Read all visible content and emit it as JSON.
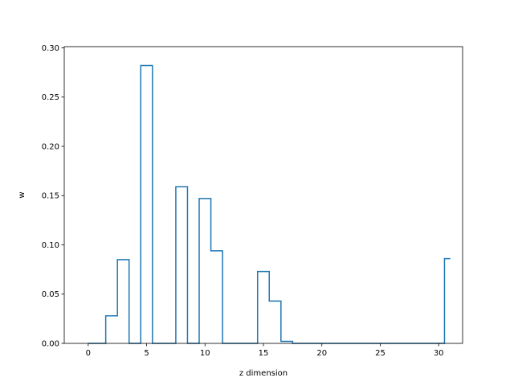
{
  "chart_data": {
    "type": "line",
    "drawstyle": "steps-mid",
    "xlabel": "z dimension",
    "ylabel": "w",
    "xlim": [
      -2.05,
      32.05
    ],
    "ylim": [
      0,
      0.3012
    ],
    "x_ticks": [
      0,
      5,
      10,
      15,
      20,
      25,
      30
    ],
    "x_tick_labels": [
      "0",
      "5",
      "10",
      "15",
      "20",
      "25",
      "30"
    ],
    "y_ticks": [
      0.0,
      0.05,
      0.1,
      0.15,
      0.2,
      0.25,
      0.3
    ],
    "y_tick_labels": [
      "0.00",
      "0.05",
      "0.10",
      "0.15",
      "0.20",
      "0.25",
      "0.30"
    ],
    "grid": false,
    "line_color": "#1f77b4",
    "series": [
      {
        "x": [
          0,
          1,
          2,
          3,
          4,
          5,
          6,
          7,
          8,
          9,
          10,
          11,
          12,
          13,
          14,
          15,
          16,
          17,
          18,
          19,
          20,
          21,
          22,
          23,
          24,
          25,
          26,
          27,
          28,
          29,
          30,
          31
        ],
        "values": [
          0.0,
          0.0,
          0.028,
          0.085,
          0.0,
          0.282,
          0.0,
          0.0,
          0.159,
          0.0,
          0.147,
          0.094,
          0.0,
          0.0,
          0.0,
          0.073,
          0.043,
          0.002,
          0.0,
          0.0,
          0.0,
          0.0,
          0.0,
          0.0,
          0.0,
          0.0,
          0.0,
          0.0,
          0.0,
          0.0,
          0.0,
          0.086
        ]
      }
    ]
  }
}
